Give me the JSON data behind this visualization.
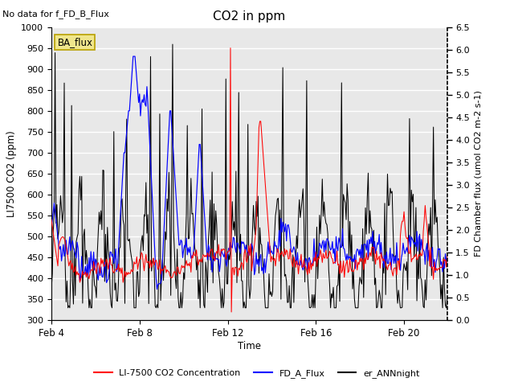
{
  "title": "CO2 in ppm",
  "top_left_text": "No data for f_FD_B_Flux",
  "xlabel": "Time",
  "ylabel_left": "LI7500 CO2 (ppm)",
  "ylabel_right_display": "FD Chamber flux (umol CO2 m-2 s-1)",
  "ylim_left": [
    300,
    1000
  ],
  "ylim_right": [
    0.0,
    6.5
  ],
  "yticks_left": [
    300,
    350,
    400,
    450,
    500,
    550,
    600,
    650,
    700,
    750,
    800,
    850,
    900,
    950,
    1000
  ],
  "yticks_right": [
    0.0,
    0.5,
    1.0,
    1.5,
    2.0,
    2.5,
    3.0,
    3.5,
    4.0,
    4.5,
    5.0,
    5.5,
    6.0,
    6.5
  ],
  "xtick_labels": [
    "Feb 4",
    "Feb 8",
    "Feb 12",
    "Feb 16",
    "Feb 20"
  ],
  "xtick_positions": [
    0,
    96,
    192,
    288,
    384
  ],
  "legend_entries": [
    "LI-7500 CO2 Concentration",
    "FD_A_Flux",
    "er_ANNnight"
  ],
  "ba_flux_box_color": "#f0e68c",
  "ba_flux_box_edge": "#b8a000",
  "plot_bg_color": "#e8e8e8",
  "fig_bg_color": "#ffffff",
  "grid_color": "#ffffff",
  "n_points": 432
}
